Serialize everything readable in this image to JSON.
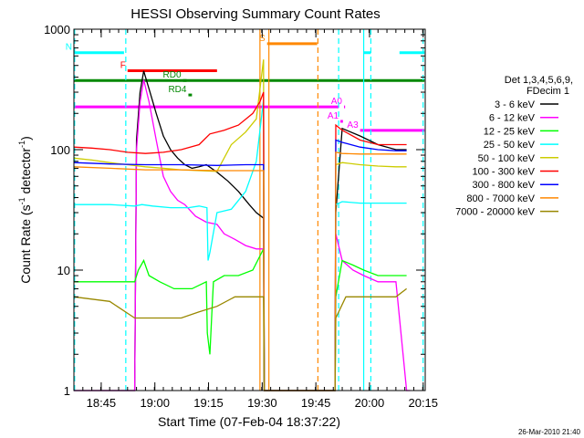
{
  "chart_data": {
    "type": "line",
    "title": "HESSI Observing Summary Count Rates",
    "xlabel": "Start Time (07-Feb-04 18:37:22)",
    "ylabel_main": "Count Rate (s",
    "ylabel_sup1": "-1",
    "ylabel_mid": " detector",
    "ylabel_sup2": "-1",
    "ylabel_end": ")",
    "footer": "26-Mar-2010 21:40",
    "yscale": "log",
    "ylim": [
      1,
      1000
    ],
    "xlim_minutes": [
      0,
      98.2
    ],
    "y_ticks": [
      "1",
      "10",
      "100",
      "1000"
    ],
    "x_ticks": [
      {
        "label": "18:45",
        "t": 7.63
      },
      {
        "label": "19:00",
        "t": 22.63
      },
      {
        "label": "19:15",
        "t": 37.63
      },
      {
        "label": "19:30",
        "t": 52.63
      },
      {
        "label": "19:45",
        "t": 67.63
      },
      {
        "label": "20:00",
        "t": 82.63
      },
      {
        "label": "20:15",
        "t": 97.63
      }
    ],
    "legend_header": [
      "Det 1,3,4,5,6,9,",
      "FDecim 1"
    ],
    "series": [
      {
        "name": "3 - 6 keV",
        "color": "#000000",
        "points": [
          [
            0,
            1
          ],
          [
            17,
            1
          ],
          [
            17.5,
            120
          ],
          [
            18.5,
            300
          ],
          [
            19.5,
            450
          ],
          [
            21,
            320
          ],
          [
            23,
            200
          ],
          [
            25,
            130
          ],
          [
            27,
            100
          ],
          [
            29,
            85
          ],
          [
            31,
            75
          ],
          [
            33,
            70
          ],
          [
            35,
            72
          ],
          [
            37,
            75
          ],
          [
            40,
            65
          ],
          [
            43,
            55
          ],
          [
            46,
            45
          ],
          [
            49,
            35
          ],
          [
            51,
            30
          ],
          [
            53,
            27
          ],
          [
            53.2,
            1
          ],
          [
            73,
            1
          ],
          [
            73.2,
            30
          ],
          [
            75,
            150
          ],
          [
            80,
            130
          ],
          [
            85,
            110
          ],
          [
            90,
            100
          ],
          [
            93,
            100
          ]
        ]
      },
      {
        "name": "6 - 12 keV",
        "color": "#ff00ff",
        "points": [
          [
            0,
            1
          ],
          [
            17,
            1
          ],
          [
            17.5,
            100
          ],
          [
            18.5,
            250
          ],
          [
            19.5,
            380
          ],
          [
            21,
            250
          ],
          [
            23,
            120
          ],
          [
            25,
            60
          ],
          [
            27,
            45
          ],
          [
            29,
            38
          ],
          [
            31,
            35
          ],
          [
            34,
            28
          ],
          [
            37,
            25
          ],
          [
            40,
            24
          ],
          [
            42,
            20
          ],
          [
            45,
            18
          ],
          [
            48,
            16
          ],
          [
            51,
            15
          ],
          [
            53,
            15
          ],
          [
            53.2,
            1
          ],
          [
            73,
            1
          ],
          [
            73.2,
            20
          ],
          [
            75,
            12
          ],
          [
            78,
            10
          ],
          [
            81,
            9
          ],
          [
            85,
            8
          ],
          [
            88,
            8
          ],
          [
            90,
            8
          ],
          [
            93,
            1
          ],
          [
            94,
            1
          ]
        ]
      },
      {
        "name": "12 - 25 keV",
        "color": "#00ff00",
        "points": [
          [
            0,
            8
          ],
          [
            17,
            8
          ],
          [
            18,
            10
          ],
          [
            19.5,
            12
          ],
          [
            21,
            9
          ],
          [
            24,
            8
          ],
          [
            28,
            7
          ],
          [
            33,
            7
          ],
          [
            37,
            8
          ],
          [
            37.3,
            3
          ],
          [
            38,
            2
          ],
          [
            38.5,
            4
          ],
          [
            39,
            8
          ],
          [
            42,
            9
          ],
          [
            46,
            9
          ],
          [
            50,
            10
          ],
          [
            53,
            15
          ],
          [
            53.2,
            1
          ],
          [
            73,
            1
          ],
          [
            73.2,
            6
          ],
          [
            75,
            12
          ],
          [
            78,
            11
          ],
          [
            81,
            10
          ],
          [
            85,
            9
          ],
          [
            90,
            9
          ],
          [
            93,
            9
          ]
        ]
      },
      {
        "name": "25 - 50 keV",
        "color": "#00ffff",
        "points": [
          [
            0,
            35
          ],
          [
            10,
            35
          ],
          [
            17,
            34
          ],
          [
            19,
            35
          ],
          [
            22,
            34
          ],
          [
            27,
            33
          ],
          [
            32,
            33
          ],
          [
            35,
            34
          ],
          [
            37.2,
            33
          ],
          [
            37.5,
            12
          ],
          [
            38,
            14
          ],
          [
            40,
            30
          ],
          [
            44,
            32
          ],
          [
            48,
            45
          ],
          [
            51,
            80
          ],
          [
            53,
            260
          ],
          [
            53.2,
            1
          ],
          [
            73,
            1
          ],
          [
            73.2,
            35
          ],
          [
            75,
            37
          ],
          [
            80,
            36
          ],
          [
            85,
            36
          ],
          [
            90,
            36
          ],
          [
            93,
            36
          ]
        ]
      },
      {
        "name": "50 - 100 keV",
        "color": "#cccc00",
        "points": [
          [
            0,
            85
          ],
          [
            5,
            82
          ],
          [
            10,
            78
          ],
          [
            15,
            75
          ],
          [
            20,
            72
          ],
          [
            25,
            70
          ],
          [
            30,
            68
          ],
          [
            35,
            67
          ],
          [
            40,
            66
          ],
          [
            44,
            110
          ],
          [
            48,
            140
          ],
          [
            51,
            180
          ],
          [
            53,
            560
          ],
          [
            53.2,
            1
          ],
          [
            73,
            1
          ],
          [
            73.2,
            75
          ],
          [
            75,
            78
          ],
          [
            80,
            75
          ],
          [
            85,
            73
          ],
          [
            90,
            72
          ],
          [
            93,
            72
          ]
        ]
      },
      {
        "name": "100 - 300 keV",
        "color": "#ff0000",
        "points": [
          [
            0,
            105
          ],
          [
            5,
            103
          ],
          [
            10,
            100
          ],
          [
            15,
            95
          ],
          [
            20,
            93
          ],
          [
            25,
            95
          ],
          [
            30,
            100
          ],
          [
            35,
            110
          ],
          [
            38,
            135
          ],
          [
            42,
            145
          ],
          [
            46,
            160
          ],
          [
            50,
            200
          ],
          [
            52,
            250
          ],
          [
            53,
            300
          ],
          [
            53.2,
            1
          ],
          [
            73,
            1
          ],
          [
            73.2,
            160
          ],
          [
            75,
            145
          ],
          [
            80,
            120
          ],
          [
            85,
            110
          ],
          [
            90,
            110
          ],
          [
            93,
            110
          ]
        ]
      },
      {
        "name": "300 - 800 keV",
        "color": "#0000ff",
        "points": [
          [
            0,
            78
          ],
          [
            10,
            76
          ],
          [
            20,
            75
          ],
          [
            30,
            75
          ],
          [
            40,
            74
          ],
          [
            48,
            75
          ],
          [
            53,
            75
          ],
          [
            53.2,
            1
          ],
          [
            73,
            1
          ],
          [
            73.2,
            120
          ],
          [
            75,
            115
          ],
          [
            80,
            105
          ],
          [
            85,
            100
          ],
          [
            90,
            98
          ],
          [
            93,
            98
          ]
        ]
      },
      {
        "name": "800 - 7000 keV",
        "color": "#ff8800",
        "points": [
          [
            0,
            72
          ],
          [
            10,
            70
          ],
          [
            20,
            68
          ],
          [
            30,
            68
          ],
          [
            40,
            67
          ],
          [
            48,
            67
          ],
          [
            53,
            67
          ],
          [
            53.2,
            1
          ],
          [
            73,
            1
          ],
          [
            73.2,
            95
          ],
          [
            75,
            93
          ],
          [
            80,
            92
          ],
          [
            85,
            92
          ],
          [
            90,
            92
          ],
          [
            93,
            92
          ]
        ]
      },
      {
        "name": "7000 - 20000 keV",
        "color": "#998800",
        "points": [
          [
            0,
            6
          ],
          [
            10,
            5.5
          ],
          [
            17,
            4
          ],
          [
            20,
            4
          ],
          [
            25,
            4
          ],
          [
            30,
            4
          ],
          [
            35,
            4.5
          ],
          [
            40,
            5
          ],
          [
            45,
            6
          ],
          [
            50,
            6
          ],
          [
            53,
            6
          ],
          [
            53.2,
            1
          ],
          [
            73,
            1
          ],
          [
            73.2,
            4
          ],
          [
            76,
            6
          ],
          [
            80,
            6
          ],
          [
            85,
            6
          ],
          [
            90,
            6
          ],
          [
            93,
            7
          ]
        ]
      }
    ],
    "flags": [
      {
        "label": "N",
        "color": "#00ffff",
        "t_start": 0,
        "t_end": 14,
        "y_frac": 0.935
      },
      {
        "label": "",
        "color": "#00ffff",
        "t_start": 81,
        "t_end": 83,
        "y_frac": 0.935
      },
      {
        "label": "",
        "color": "#00ffff",
        "t_start": 91,
        "t_end": 98,
        "y_frac": 0.935
      },
      {
        "label": "F",
        "color": "#ff0000",
        "t_start": 15,
        "t_end": 40,
        "y_frac": 0.885
      },
      {
        "label": "S",
        "color": "#ff8800",
        "t_start": 54,
        "t_end": 68,
        "y_frac": 0.96
      },
      {
        "label": "RD0",
        "color": "#008800",
        "t_start": 30.5,
        "t_end": 31.5,
        "y_frac": 0.858
      },
      {
        "label": "RD4",
        "color": "#008800",
        "t_start": 32,
        "t_end": 33,
        "y_frac": 0.818
      },
      {
        "label": "",
        "color": "#008800",
        "t_start": 0,
        "t_end": 98,
        "y_frac": 0.858
      },
      {
        "label": "",
        "color": "#ff00ff",
        "t_start": 0,
        "t_end": 74,
        "y_frac": 0.785
      },
      {
        "label": "A0",
        "color": "#ff00ff",
        "t_start": 75.5,
        "t_end": 75.8,
        "y_frac": 0.785
      },
      {
        "label": "A1",
        "color": "#ff00ff",
        "t_start": 74.5,
        "t_end": 75.2,
        "y_frac": 0.745
      },
      {
        "label": "A3",
        "color": "#ff00ff",
        "t_start": 80,
        "t_end": 98,
        "y_frac": 0.72
      }
    ],
    "vlines": [
      {
        "t": 52,
        "color": "#ff8800",
        "dash": false
      },
      {
        "t": 54.5,
        "color": "#ff8800",
        "dash": false
      },
      {
        "t": 68.2,
        "color": "#ff8800",
        "dash": true
      },
      {
        "t": 0.2,
        "color": "#00ffff",
        "dash": true
      },
      {
        "t": 14.5,
        "color": "#00ffff",
        "dash": true
      },
      {
        "t": 74,
        "color": "#00ffff",
        "dash": true
      },
      {
        "t": 81,
        "color": "#00ffff",
        "dash": false
      },
      {
        "t": 83,
        "color": "#00ffff",
        "dash": true
      },
      {
        "t": 97.6,
        "color": "#00ffff",
        "dash": true
      }
    ]
  }
}
